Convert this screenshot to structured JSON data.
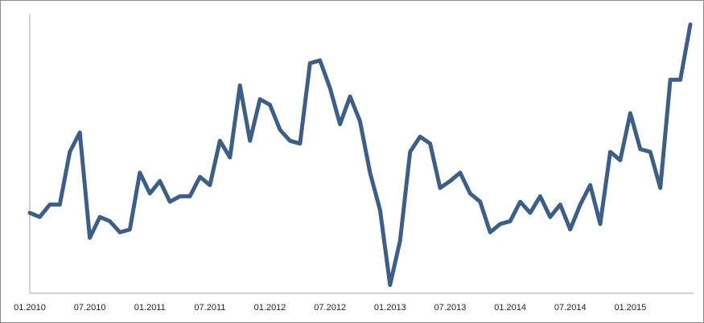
{
  "chart_data": {
    "type": "line",
    "x": [
      "01.2010",
      "02.2010",
      "03.2010",
      "04.2010",
      "05.2010",
      "06.2010",
      "07.2010",
      "08.2010",
      "09.2010",
      "10.2010",
      "11.2010",
      "12.2010",
      "01.2011",
      "02.2011",
      "03.2011",
      "04.2011",
      "05.2011",
      "06.2011",
      "07.2011",
      "08.2011",
      "09.2011",
      "10.2011",
      "11.2011",
      "12.2011",
      "01.2012",
      "02.2012",
      "03.2012",
      "04.2012",
      "05.2012",
      "06.2012",
      "07.2012",
      "08.2012",
      "09.2012",
      "10.2012",
      "11.2012",
      "12.2012",
      "01.2013",
      "02.2013",
      "03.2013",
      "04.2013",
      "05.2013",
      "06.2013",
      "07.2013",
      "08.2013",
      "09.2013",
      "10.2013",
      "11.2013",
      "12.2013",
      "01.2014",
      "02.2014",
      "03.2014",
      "04.2014",
      "05.2014",
      "06.2014",
      "07.2014",
      "08.2014",
      "09.2014",
      "10.2014",
      "11.2014",
      "12.2014",
      "01.2015",
      "02.2015",
      "03.2015",
      "04.2015",
      "05.2015",
      "06.2015",
      "07.2015"
    ],
    "series": [
      {
        "color": "#3b5f89",
        "values": [
          29,
          27.5,
          32,
          32,
          51,
          58,
          20,
          27.5,
          26,
          22,
          23,
          43.5,
          36,
          40.5,
          33,
          35,
          35,
          42,
          39,
          55,
          49,
          75,
          55,
          70,
          68,
          59,
          55,
          54,
          83,
          84,
          74,
          61,
          71,
          62,
          43.5,
          30,
          3,
          19,
          51,
          56.5,
          54,
          38,
          40.5,
          43.5,
          36,
          33,
          22,
          25,
          26,
          33,
          29,
          35,
          27.5,
          32,
          23,
          32,
          39,
          25,
          51,
          48,
          65,
          52,
          51,
          38,
          77,
          77,
          97
        ]
      }
    ],
    "xticks": [
      "01.2010",
      "07.2010",
      "01.2011",
      "07.2011",
      "01.2012",
      "07.2012",
      "01.2013",
      "07.2013",
      "01.2014",
      "07.2014",
      "01.2015"
    ],
    "ylim": [
      0,
      100
    ],
    "grid": false
  }
}
